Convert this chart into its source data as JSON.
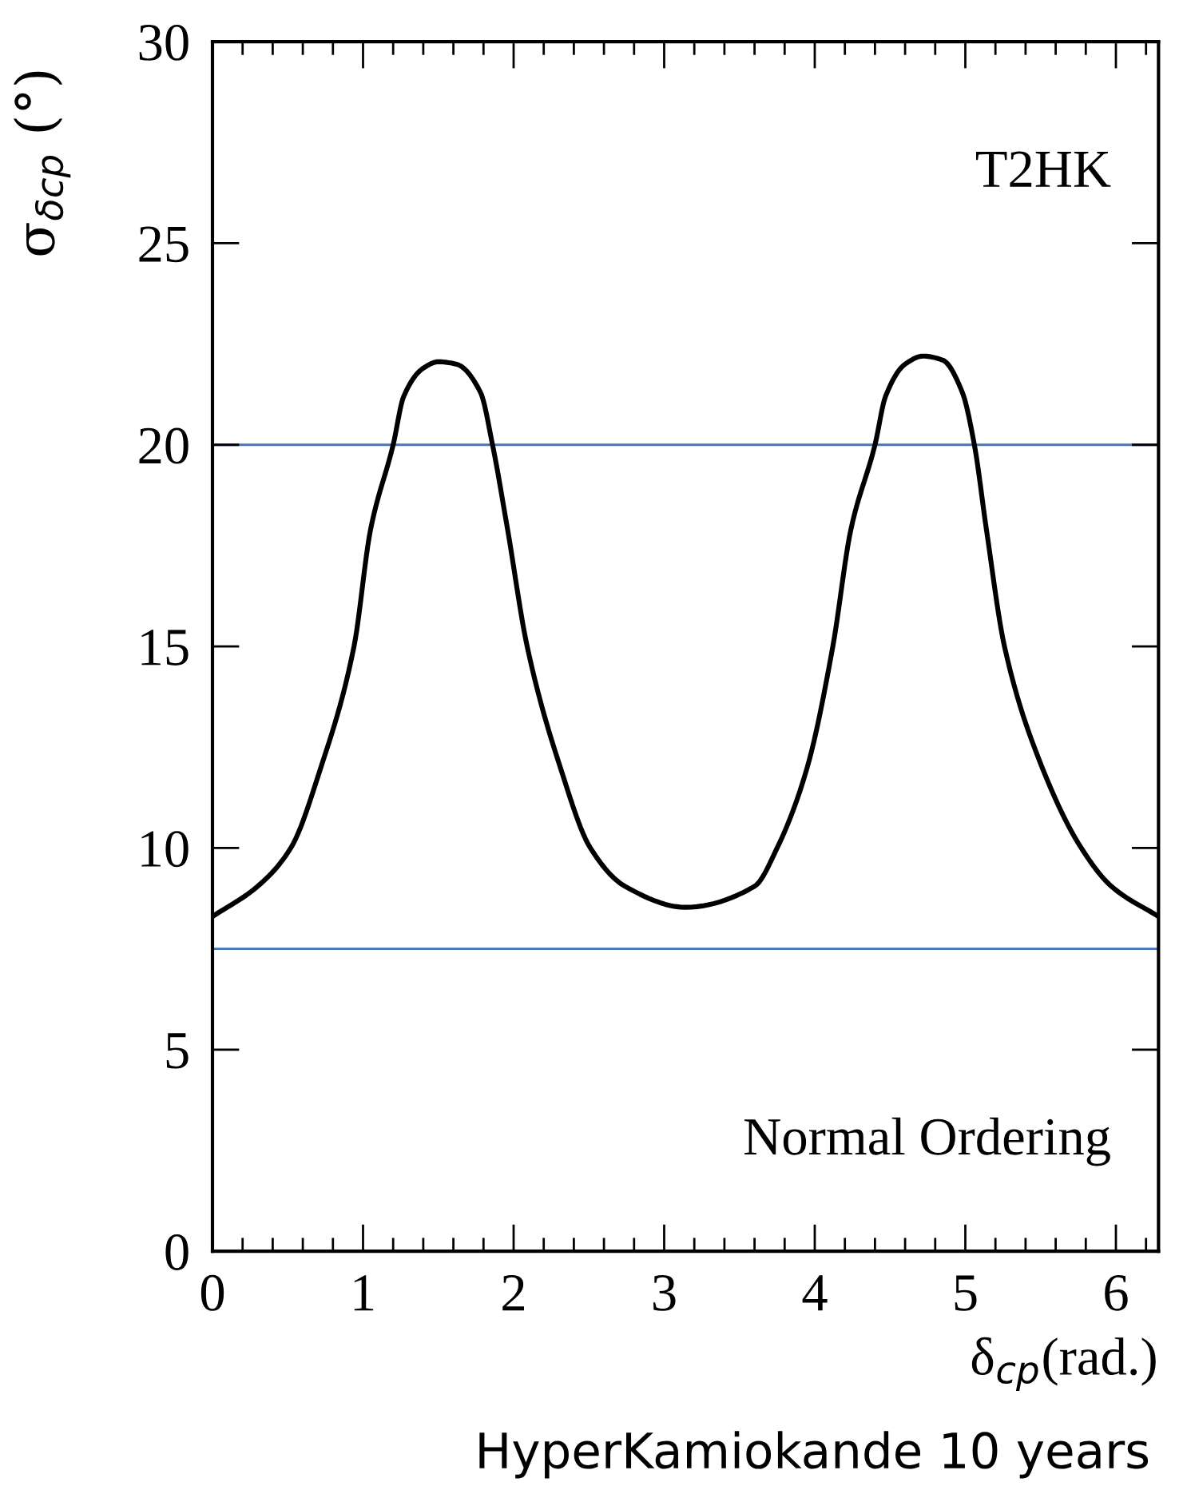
{
  "chart_data": {
    "type": "line",
    "xlabel": "δ$_{cp}$(rad.)",
    "ylabel": "σ$_{δcp}$ (°)",
    "annotations": [
      "T2HK",
      "Normal Ordering",
      "HyperKamiokande 10 years"
    ],
    "x": [
      0,
      0.3,
      0.52,
      0.72,
      0.94,
      1.05,
      1.2,
      1.27,
      1.4,
      1.5,
      1.62,
      1.78,
      1.86,
      1.96,
      2.09,
      2.31,
      2.51,
      2.74,
      3.14,
      3.6,
      3.75,
      3.95,
      4.12,
      4.24,
      4.4,
      4.47,
      4.6,
      4.72,
      4.85,
      4.98,
      5.06,
      5.14,
      5.26,
      5.51,
      5.77,
      5.97,
      6.283
    ],
    "series": [
      {
        "color": "#000000",
        "values": [
          8.3,
          9.05,
          10,
          12,
          15,
          17.9,
          20,
          21.2,
          21.9,
          22.06,
          22.0,
          21.3,
          20,
          17.9,
          15,
          12,
          10,
          9.05,
          8.53,
          9.05,
          10,
          12,
          15,
          17.9,
          20,
          21.2,
          22.0,
          22.2,
          22.1,
          21.3,
          20,
          17.9,
          15,
          12,
          10,
          9.05,
          8.3
        ]
      }
    ],
    "xlim": [
      0,
      6.283
    ],
    "ylim": [
      0,
      30
    ],
    "xticks": [
      0,
      1,
      2,
      3,
      4,
      5,
      6
    ],
    "yticks": [
      0,
      5,
      10,
      15,
      20,
      25,
      30
    ],
    "ref_lines": [
      {
        "axis": "y",
        "value": 20,
        "color": "#4472c4"
      },
      {
        "axis": "y",
        "value": 7.5,
        "color": "#4472c4"
      }
    ],
    "grid": false,
    "legend": false,
    "marker": "none",
    "line_style": "solid"
  }
}
